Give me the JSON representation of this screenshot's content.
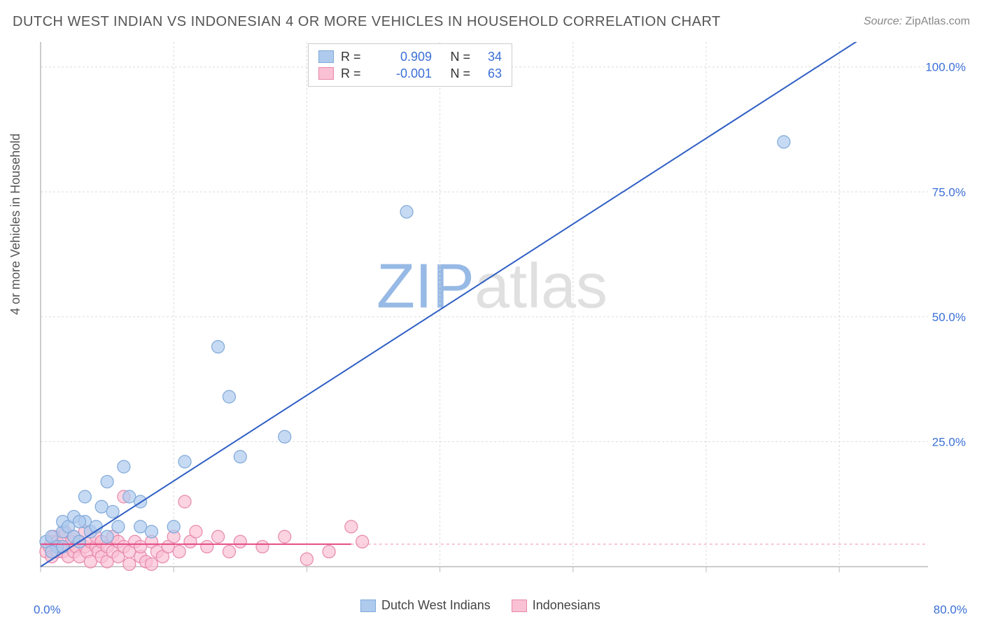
{
  "title": "DUTCH WEST INDIAN VS INDONESIAN 4 OR MORE VEHICLES IN HOUSEHOLD CORRELATION CHART",
  "source_label": "Source:",
  "source_value": "ZipAtlas.com",
  "ylabel": "4 or more Vehicles in Household",
  "watermark_a": "ZIP",
  "watermark_b": "atlas",
  "chart": {
    "type": "scatter",
    "background_color": "#ffffff",
    "grid_color": "#dcdcdc",
    "grid_dash": "3,3",
    "xlim": [
      0,
      80
    ],
    "ylim": [
      0,
      105
    ],
    "xtick_labels": [
      "0.0%",
      "80.0%"
    ],
    "ytick_step": 25,
    "ytick_labels": [
      "25.0%",
      "50.0%",
      "75.0%",
      "100.0%"
    ],
    "ytick_values": [
      25,
      50,
      75,
      100
    ],
    "xgrid_values": [
      0,
      12,
      24,
      36,
      48,
      60,
      72
    ],
    "ylabel_color": "#555555",
    "axis_label_color": "#3b6fd6",
    "axis_line_color": "#bbbbbb",
    "series": [
      {
        "name": "Dutch West Indians",
        "color_fill": "#aecbee",
        "color_stroke": "#7fa8d9",
        "marker_radius": 9,
        "marker_opacity": 0.7,
        "r": "0.909",
        "n": "34",
        "trend": {
          "x1": 0,
          "y1": 0,
          "x2": 77,
          "y2": 110,
          "stroke": "#2f5fc4",
          "width": 2
        },
        "points": [
          [
            0.5,
            5
          ],
          [
            1,
            6
          ],
          [
            1.5,
            4
          ],
          [
            2,
            7
          ],
          [
            2,
            9
          ],
          [
            2.5,
            8
          ],
          [
            3,
            6
          ],
          [
            3,
            10
          ],
          [
            3.5,
            5
          ],
          [
            4,
            9
          ],
          [
            4,
            14
          ],
          [
            4.5,
            7
          ],
          [
            5,
            8
          ],
          [
            5.5,
            12
          ],
          [
            6,
            6
          ],
          [
            6,
            17
          ],
          [
            7,
            8
          ],
          [
            7.5,
            20
          ],
          [
            8,
            14
          ],
          [
            9,
            8
          ],
          [
            10,
            7
          ],
          [
            12,
            8
          ],
          [
            13,
            21
          ],
          [
            16,
            44
          ],
          [
            17,
            34
          ],
          [
            18,
            22
          ],
          [
            22,
            26
          ],
          [
            33,
            71
          ],
          [
            67,
            85
          ],
          [
            1,
            3
          ],
          [
            2,
            4
          ],
          [
            3.5,
            9
          ],
          [
            6.5,
            11
          ],
          [
            9,
            13
          ]
        ]
      },
      {
        "name": "Indonesians",
        "color_fill": "#fac0d4",
        "color_stroke": "#e787ab",
        "marker_radius": 9,
        "marker_opacity": 0.7,
        "r": "-0.001",
        "n": "63",
        "trend": {
          "x1": 0,
          "y1": 4.5,
          "x2": 28,
          "y2": 4.5,
          "stroke": "#e54b84",
          "width": 2,
          "dash_extend": {
            "x1": 28,
            "x2": 80,
            "stroke": "#f6b3c9",
            "dash": "4,4"
          }
        },
        "points": [
          [
            0.5,
            3
          ],
          [
            0.8,
            4
          ],
          [
            1,
            5
          ],
          [
            1,
            2
          ],
          [
            1.2,
            6
          ],
          [
            1.5,
            3
          ],
          [
            1.5,
            5
          ],
          [
            1.8,
            4
          ],
          [
            2,
            6
          ],
          [
            2,
            3
          ],
          [
            2.2,
            7
          ],
          [
            2.5,
            4
          ],
          [
            2.5,
            2
          ],
          [
            2.8,
            5
          ],
          [
            3,
            3
          ],
          [
            3,
            6
          ],
          [
            3.2,
            4
          ],
          [
            3.5,
            5
          ],
          [
            3.5,
            2
          ],
          [
            4,
            4
          ],
          [
            4,
            7
          ],
          [
            4.2,
            3
          ],
          [
            4.5,
            5
          ],
          [
            4.5,
            1
          ],
          [
            5,
            4
          ],
          [
            5,
            6
          ],
          [
            5.2,
            3
          ],
          [
            5.5,
            2
          ],
          [
            5.5,
            5
          ],
          [
            6,
            4
          ],
          [
            6,
            1
          ],
          [
            6.5,
            3
          ],
          [
            6.5,
            6
          ],
          [
            7,
            2
          ],
          [
            7,
            5
          ],
          [
            7.5,
            4
          ],
          [
            7.5,
            14
          ],
          [
            8,
            3
          ],
          [
            8,
            0.5
          ],
          [
            8.5,
            5
          ],
          [
            9,
            2
          ],
          [
            9,
            4
          ],
          [
            9.5,
            1
          ],
          [
            10,
            0.5
          ],
          [
            10,
            5
          ],
          [
            10.5,
            3
          ],
          [
            11,
            2
          ],
          [
            11.5,
            4
          ],
          [
            12,
            6
          ],
          [
            12.5,
            3
          ],
          [
            13,
            13
          ],
          [
            13.5,
            5
          ],
          [
            14,
            7
          ],
          [
            15,
            4
          ],
          [
            16,
            6
          ],
          [
            17,
            3
          ],
          [
            18,
            5
          ],
          [
            20,
            4
          ],
          [
            22,
            6
          ],
          [
            24,
            1.5
          ],
          [
            26,
            3
          ],
          [
            28,
            8
          ],
          [
            29,
            5
          ]
        ]
      }
    ]
  },
  "legend_top": {
    "r_label": "R =",
    "n_label": "N ="
  },
  "legend_bottom": [
    {
      "swatch_fill": "#aecbee",
      "swatch_stroke": "#7fa8d9",
      "label": "Dutch West Indians"
    },
    {
      "swatch_fill": "#fac0d4",
      "swatch_stroke": "#e787ab",
      "label": "Indonesians"
    }
  ]
}
